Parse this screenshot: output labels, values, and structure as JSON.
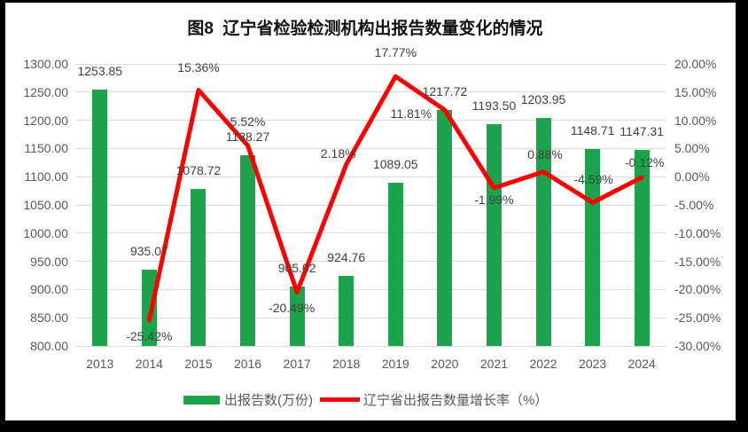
{
  "title": "图8  辽宁省检验检测机构出报告数量变化的情况",
  "chart_data": {
    "type": "bar+line",
    "categories": [
      "2013",
      "2014",
      "2015",
      "2016",
      "2017",
      "2018",
      "2019",
      "2020",
      "2021",
      "2022",
      "2023",
      "2024"
    ],
    "series": [
      {
        "name": "出报告数(万份)",
        "type": "bar",
        "color": "#1ea34d",
        "axis": "left",
        "values": [
          1253.85,
          935.07,
          1078.72,
          1138.27,
          905.02,
          924.76,
          1089.05,
          1217.72,
          1193.5,
          1203.95,
          1148.71,
          1147.31
        ],
        "labels": [
          "1253.85",
          "935.07",
          "1078.72",
          "1138.27",
          "905.02",
          "924.76",
          "1089.05",
          "1217.72",
          "1193.50",
          "1203.95",
          "1148.71",
          "1147.31"
        ]
      },
      {
        "name": "辽宁省出报告数量增长率（%）",
        "type": "line",
        "color": "#ff0000",
        "axis": "right",
        "values": [
          null,
          -25.42,
          15.36,
          5.52,
          -20.49,
          2.18,
          17.77,
          11.81,
          -1.99,
          0.88,
          -4.59,
          -0.12
        ],
        "labels": [
          null,
          "-25.42%",
          "15.36%",
          "5.52%",
          "-20.49%",
          "2.18%",
          "17.77%",
          "11.81%",
          "-1.99%",
          "0.88%",
          "-4.59%",
          "-0.12%"
        ]
      }
    ],
    "left_axis": {
      "min": 800,
      "max": 1300,
      "ticks": [
        "1300.00",
        "1250.00",
        "1200.00",
        "1150.00",
        "1100.00",
        "1050.00",
        "1000.00",
        "950.00",
        "900.00",
        "850.00",
        "800.00"
      ]
    },
    "right_axis": {
      "min": -30,
      "max": 20,
      "ticks": [
        "20.00%",
        "15.00%",
        "10.00%",
        "5.00%",
        "0.00%",
        "-5.00%",
        "-10.00%",
        "-15.00%",
        "-20.00%",
        "-25.00%",
        "-30.00%"
      ]
    },
    "grid": true,
    "legend_position": "bottom"
  },
  "legend": {
    "bar_label": "出报告数(万份)",
    "line_label": "辽宁省出报告数量增长率（%）"
  }
}
